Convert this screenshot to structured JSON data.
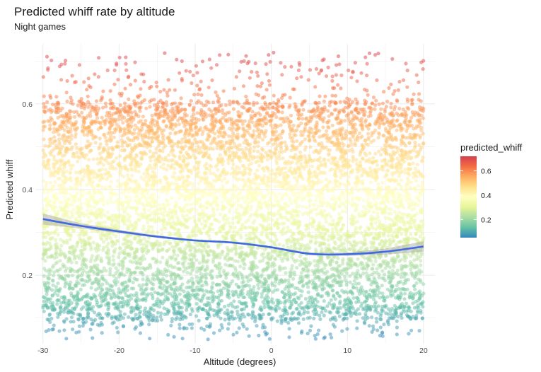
{
  "chart_data": {
    "type": "scatter",
    "title": "Predicted whiff rate by altitude",
    "subtitle": "Night games",
    "xlabel": "Altitude (degrees)",
    "ylabel": "Predicted whiff",
    "xlim": [
      -31,
      21.5
    ],
    "ylim": [
      0.04,
      0.74
    ],
    "x_ticks": [
      -30,
      -20,
      -10,
      0,
      10,
      20
    ],
    "y_ticks": [
      0.2,
      0.4,
      0.6
    ],
    "x_tick_labels": [
      "-30",
      "-20",
      "-10",
      "0",
      "10",
      "20"
    ],
    "y_tick_labels": [
      "0.2",
      "0.4",
      "0.6"
    ],
    "grid": true,
    "color_scale": {
      "name": "predicted_whiff",
      "palette": "Spectral (reversed)",
      "domain": [
        0.05,
        0.72
      ],
      "ticks": [
        0.2,
        0.4,
        0.6
      ],
      "tick_labels": [
        "0.2",
        "0.4",
        "0.6"
      ],
      "stops": [
        "#3288bd",
        "#66c2a5",
        "#abdda4",
        "#e6f598",
        "#ffffbf",
        "#fee08b",
        "#fdae61",
        "#f46d43",
        "#d53e4f"
      ]
    },
    "legend_position": "right",
    "points": {
      "approx_count": 8000,
      "x_range": [
        -30,
        20
      ],
      "dense_band": [
        0.1,
        0.6
      ],
      "min": 0.05,
      "max": 0.72,
      "alpha": 0.5
    },
    "smooth": {
      "color": "#4169e1",
      "x": [
        -30,
        -25,
        -20,
        -15,
        -10,
        -5,
        0,
        5,
        10,
        15,
        20
      ],
      "y": [
        0.331,
        0.315,
        0.302,
        0.29,
        0.281,
        0.276,
        0.265,
        0.25,
        0.249,
        0.255,
        0.267
      ],
      "ci_low": [
        0.318,
        0.309,
        0.298,
        0.287,
        0.279,
        0.274,
        0.263,
        0.247,
        0.245,
        0.248,
        0.255
      ],
      "ci_high": [
        0.344,
        0.321,
        0.306,
        0.293,
        0.283,
        0.278,
        0.267,
        0.253,
        0.253,
        0.262,
        0.279
      ]
    }
  }
}
